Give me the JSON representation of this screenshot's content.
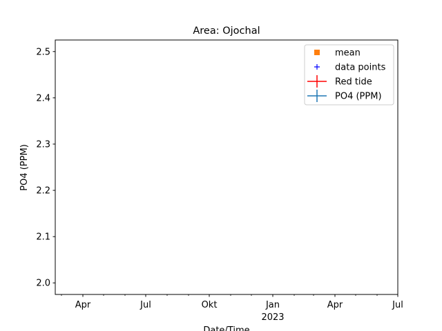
{
  "chart_data": {
    "type": "line",
    "title": "Area: Ojochal",
    "xlabel": "Date/Time",
    "ylabel": "PO4 (PPM)",
    "xlim": [
      "2022-02-20",
      "2023-07-01"
    ],
    "ylim": [
      1.975,
      2.525
    ],
    "x_ticks": [
      {
        "date": "2022-04-01",
        "label": "Apr"
      },
      {
        "date": "2022-07-01",
        "label": "Jul"
      },
      {
        "date": "2022-10-01",
        "label": "Okt"
      },
      {
        "date": "2023-01-01",
        "label": "Jan",
        "sublabel": "2023"
      },
      {
        "date": "2023-04-01",
        "label": "Apr"
      },
      {
        "date": "2023-07-01",
        "label": "Jul"
      }
    ],
    "x_minor_ticks": [
      "2022-03-01",
      "2022-05-01",
      "2022-06-01",
      "2022-08-01",
      "2022-09-01",
      "2022-11-01",
      "2022-12-01",
      "2023-02-01",
      "2023-03-01",
      "2023-05-01",
      "2023-06-01"
    ],
    "y_ticks": [
      2.0,
      2.1,
      2.2,
      2.3,
      2.4,
      2.5
    ],
    "grid": false,
    "legend_position": "top-right",
    "legend": [
      {
        "label": "mean",
        "marker": "square",
        "color": "#ff7f0e"
      },
      {
        "label": "data points",
        "marker": "plus",
        "color": "#0000ff"
      },
      {
        "label": "Red tide",
        "marker": "errorbar",
        "color": "#ff0000"
      },
      {
        "label": "PO4 (PPM)",
        "marker": "errorbar",
        "color": "#1f77b4"
      }
    ],
    "series": []
  }
}
